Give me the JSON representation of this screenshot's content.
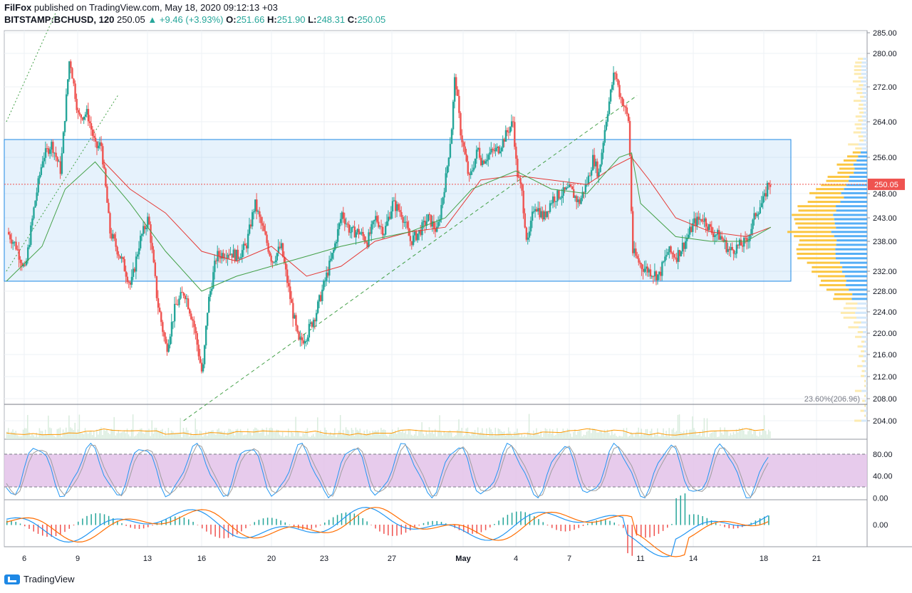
{
  "header": {
    "author": "FilFox",
    "published_text": "published on TradingView.com, May 18, 2020 09:12:13 +03",
    "symbol": "BITSTAMP:BCHUSD, 120",
    "last": "250.05",
    "change": "+9.46 (+3.93%)",
    "o_label": "O:",
    "o_value": "251.66",
    "h_label": "H:",
    "h_value": "251.90",
    "l_label": "L:",
    "l_value": "248.31",
    "c_label": "C:",
    "c_value": "250.05"
  },
  "footer": {
    "brand": "TradingView",
    "logo_icon": "tradingview-logo-icon"
  },
  "colors": {
    "bull": "#26a69a",
    "bear": "#ef5350",
    "ma_green": "#43a047",
    "ma_red": "#e53935",
    "box": "#1e88e5",
    "stoch_fill": "#e1bee7",
    "profile_yellow": "#fbc02d",
    "profile_blue": "#42a5f5"
  },
  "chart_data": {
    "type": "candlestick",
    "price_ticks": [
      "285.00",
      "280.00",
      "272.00",
      "264.00",
      "256.00",
      "248.00",
      "243.00",
      "238.00",
      "232.00",
      "228.00",
      "224.00",
      "220.00",
      "216.00",
      "212.00",
      "208.00",
      "204.00"
    ],
    "price_tick_values": [
      285,
      280,
      272,
      264,
      256,
      248,
      243,
      238,
      232,
      228,
      224,
      220,
      216,
      212,
      208,
      204
    ],
    "x_labels": [
      "6",
      "9",
      "13",
      "16",
      "20",
      "23",
      "27",
      "May",
      "4",
      "7",
      "11",
      "14",
      "18",
      "21"
    ],
    "x_label_days": [
      6,
      9,
      13,
      16,
      20,
      23,
      27,
      31,
      34,
      37,
      41,
      44,
      48,
      51
    ],
    "current_price_label": "250.05",
    "current_price": 250.05,
    "fib_label": "23.60%(206.96)",
    "fib_value": 206.96,
    "range_box": {
      "top": 260.0,
      "bottom": 230.0
    },
    "close_path": [
      [
        5,
        240
      ],
      [
        5.5,
        237
      ],
      [
        6,
        232
      ],
      [
        6.5,
        245
      ],
      [
        7,
        256
      ],
      [
        7.5,
        259
      ],
      [
        8,
        253
      ],
      [
        8.5,
        279
      ],
      [
        9,
        265
      ],
      [
        9.5,
        266
      ],
      [
        10,
        258
      ],
      [
        10.3,
        259
      ],
      [
        10.8,
        240
      ],
      [
        11.5,
        234
      ],
      [
        12,
        229
      ],
      [
        12.5,
        238
      ],
      [
        13,
        243
      ],
      [
        13.5,
        226
      ],
      [
        14,
        217
      ],
      [
        14.5,
        225
      ],
      [
        15,
        228
      ],
      [
        15.5,
        222
      ],
      [
        16,
        212
      ],
      [
        16.3,
        225
      ],
      [
        16.8,
        235
      ],
      [
        17.5,
        236
      ],
      [
        18,
        235
      ],
      [
        18.5,
        237
      ],
      [
        19,
        246
      ],
      [
        19.5,
        240
      ],
      [
        20,
        234
      ],
      [
        20.5,
        237
      ],
      [
        21,
        227
      ],
      [
        21.5,
        218
      ],
      [
        22,
        220
      ],
      [
        22.5,
        224
      ],
      [
        23,
        230
      ],
      [
        23.5,
        236
      ],
      [
        24,
        244
      ],
      [
        24.5,
        240
      ],
      [
        25,
        240
      ],
      [
        25.5,
        238
      ],
      [
        26,
        243
      ],
      [
        26.5,
        240
      ],
      [
        27,
        246
      ],
      [
        27.5,
        244
      ],
      [
        28,
        238
      ],
      [
        28.5,
        240
      ],
      [
        29,
        243
      ],
      [
        29.5,
        240
      ],
      [
        30,
        252
      ],
      [
        30.3,
        262
      ],
      [
        30.5,
        275
      ],
      [
        30.8,
        262
      ],
      [
        31.3,
        251
      ],
      [
        31.8,
        258
      ],
      [
        32,
        255
      ],
      [
        32.5,
        257
      ],
      [
        33,
        258
      ],
      [
        33.5,
        262
      ],
      [
        33.8,
        264
      ],
      [
        34,
        253
      ],
      [
        34.3,
        248
      ],
      [
        34.6,
        237
      ],
      [
        35,
        246
      ],
      [
        35.5,
        243
      ],
      [
        36,
        247
      ],
      [
        36.5,
        248
      ],
      [
        37,
        249
      ],
      [
        37.5,
        246
      ],
      [
        38,
        251
      ],
      [
        38.3,
        256
      ],
      [
        38.6,
        252
      ],
      [
        39,
        264
      ],
      [
        39.5,
        276
      ],
      [
        39.8,
        270
      ],
      [
        40,
        268
      ],
      [
        40.3,
        264
      ],
      [
        40.5,
        236
      ],
      [
        41,
        233
      ],
      [
        41.5,
        232
      ],
      [
        42,
        231
      ],
      [
        42.5,
        236
      ],
      [
        43,
        235
      ],
      [
        43.5,
        238
      ],
      [
        44,
        242
      ],
      [
        44.5,
        243
      ],
      [
        45,
        240
      ],
      [
        45.5,
        239
      ],
      [
        46,
        236
      ],
      [
        46.5,
        237
      ],
      [
        47,
        238
      ],
      [
        47.5,
        244
      ],
      [
        48,
        247
      ],
      [
        48.2,
        250.5
      ],
      [
        48.4,
        250
      ]
    ],
    "ma_green": [
      [
        5,
        230
      ],
      [
        7,
        237
      ],
      [
        8.3,
        249
      ],
      [
        10,
        255
      ],
      [
        12,
        246
      ],
      [
        14,
        236
      ],
      [
        16,
        228
      ],
      [
        18,
        231
      ],
      [
        20,
        233
      ],
      [
        22,
        235
      ],
      [
        24,
        237
      ],
      [
        26,
        238.5
      ],
      [
        28,
        240
      ],
      [
        30,
        243
      ],
      [
        31.5,
        249
      ],
      [
        34,
        253
      ],
      [
        36,
        249
      ],
      [
        38,
        248
      ],
      [
        39.8,
        256
      ],
      [
        40.5,
        257
      ],
      [
        41,
        246
      ],
      [
        43,
        239
      ],
      [
        45,
        238
      ],
      [
        47,
        238
      ],
      [
        48.4,
        241
      ]
    ],
    "ma_red": [
      [
        10.5,
        255
      ],
      [
        12,
        249
      ],
      [
        14,
        244
      ],
      [
        16,
        236
      ],
      [
        18,
        234
      ],
      [
        20,
        237
      ],
      [
        22,
        231
      ],
      [
        24,
        233
      ],
      [
        26,
        238
      ],
      [
        28,
        240
      ],
      [
        30,
        241
      ],
      [
        32,
        251
      ],
      [
        34,
        252
      ],
      [
        36,
        251
      ],
      [
        38,
        250
      ],
      [
        39.5,
        254
      ],
      [
        40.5,
        256
      ],
      [
        41.5,
        251
      ],
      [
        43,
        243
      ],
      [
        45,
        240
      ],
      [
        47,
        239
      ],
      [
        48.4,
        241
      ]
    ],
    "trend_lines": [
      {
        "from": [
          5,
          264
        ],
        "to": [
          7.8,
          290
        ]
      },
      {
        "from": [
          5,
          232
        ],
        "to": [
          11.3,
          270
        ]
      },
      {
        "from": [
          15,
          204
        ],
        "to": [
          40.8,
          270
        ]
      }
    ],
    "stochastic": {
      "ticks": [
        "80.00",
        "40.00",
        "0.00"
      ],
      "tick_values": [
        80,
        40,
        0
      ],
      "upper": 80,
      "lower": 20
    },
    "macd": {
      "ticks": [
        "0.00"
      ],
      "tick_values": [
        0
      ]
    }
  }
}
